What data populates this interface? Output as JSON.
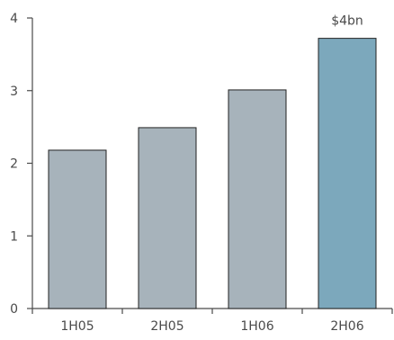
{
  "chart_data": {
    "type": "bar",
    "categories": [
      "1H05",
      "2H05",
      "1H06",
      "2H06"
    ],
    "values": [
      2.18,
      2.49,
      3.01,
      3.72
    ],
    "bar_colors": [
      "#a7b3bb",
      "#a7b3bb",
      "#a7b3bb",
      "#7ca8bc"
    ],
    "ylim": [
      0,
      4
    ],
    "yticks": [
      "0",
      "1",
      "2",
      "3",
      "4"
    ],
    "annotation": {
      "category": "2H06",
      "text": "$4bn"
    },
    "grid": false,
    "title": "",
    "xlabel": "",
    "ylabel": ""
  },
  "colors": {
    "axis": "#4a4a4a",
    "bar_outline": "#222222",
    "text": "#4a4a4a"
  }
}
